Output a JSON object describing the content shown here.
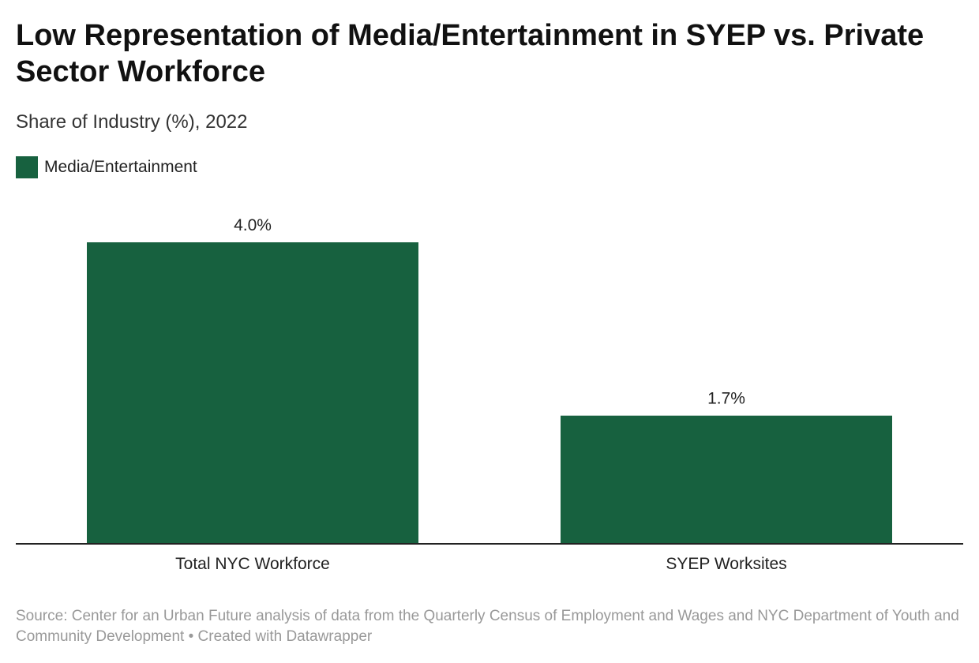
{
  "chart_data": {
    "type": "bar",
    "title": "Low Representation of Media/Entertainment in SYEP vs. Private Sector Workforce",
    "subtitle": "Share of Industry (%), 2022",
    "categories": [
      "Total NYC Workforce",
      "SYEP Worksites"
    ],
    "series": [
      {
        "name": "Media/Entertainment",
        "values": [
          4.0,
          1.7
        ],
        "labels": [
          "4.0%",
          "1.7%"
        ],
        "color": "#17613f"
      }
    ],
    "ylim": [
      0,
      4.0
    ],
    "grid": false,
    "legend_placement": "top-left"
  },
  "source": "Source: Center for an Urban Future analysis of data from the Quarterly Census of Employment and Wages and NYC Department of Youth and Community Development • Created with Datawrapper"
}
